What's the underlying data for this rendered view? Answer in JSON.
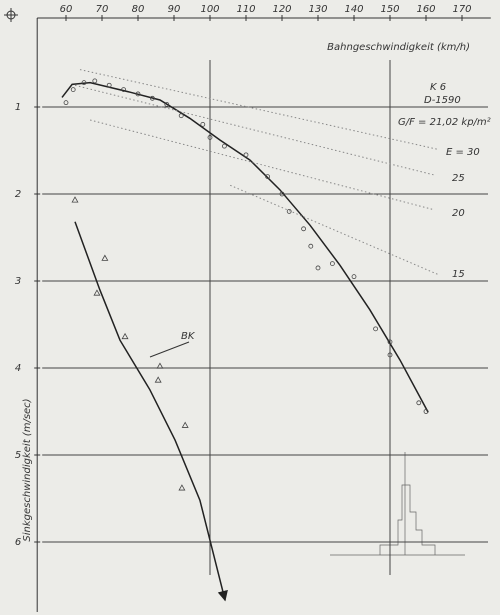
{
  "chart_data": {
    "type": "polar",
    "x_label": "Bahngeschwindigkeit (km/h)",
    "y_label": "Sinkgeschwindigkeit (m/sec)",
    "xlim": [
      52,
      178
    ],
    "xticks": [
      60,
      70,
      80,
      90,
      100,
      110,
      120,
      130,
      140,
      150,
      160,
      170
    ],
    "ylim": [
      0,
      6.8
    ],
    "yticks": [
      1,
      2,
      3,
      4,
      5,
      6
    ],
    "y_inverted": true,
    "grid": true,
    "xgrid": [
      100,
      150
    ],
    "annotations": [
      "K 6",
      "D-1590",
      "G/F = 21,02 kp/m²",
      "E = 30",
      "25",
      "20",
      "15",
      "BK"
    ],
    "series": [
      {
        "marker": "line",
        "color": "#222222",
        "x": [
          58.9,
          61.7,
          66.7,
          77.8,
          86.1,
          94.4,
          102.8,
          111.1,
          119.4,
          127.8,
          136.1,
          144.4,
          152.8,
          160.6
        ],
        "values": [
          0.89,
          0.74,
          0.72,
          0.83,
          0.92,
          1.13,
          1.38,
          1.61,
          1.95,
          2.36,
          2.82,
          3.33,
          3.91,
          4.51
        ]
      },
      {
        "marker": "circle",
        "color": "#444444",
        "x": [
          60,
          62,
          65,
          68,
          72,
          76,
          80,
          84,
          88,
          92,
          98,
          100,
          104,
          110,
          116,
          120,
          122,
          126,
          128,
          130,
          134,
          140,
          146,
          150,
          150,
          158,
          160
        ],
        "values": [
          0.95,
          0.8,
          0.72,
          0.7,
          0.75,
          0.8,
          0.85,
          0.9,
          0.97,
          1.1,
          1.2,
          1.35,
          1.45,
          1.55,
          1.8,
          2.0,
          2.2,
          2.4,
          2.6,
          2.85,
          2.8,
          2.95,
          3.55,
          3.7,
          3.85,
          4.4,
          4.5
        ]
      },
      {
        "marker": "arrow",
        "color": "#222222",
        "x": [
          62.5,
          69.4,
          75,
          83.3,
          90.3,
          97.2,
          104.2
        ],
        "values": [
          2.32,
          3.1,
          3.68,
          4.25,
          4.83,
          5.52,
          6.67
        ]
      },
      {
        "marker": "triangle",
        "color": "#444444",
        "x": [
          62.5,
          70.8,
          68.6,
          76.4,
          86.1,
          85.6,
          93.1,
          92.2
        ],
        "values": [
          2.07,
          2.74,
          3.14,
          3.64,
          3.98,
          4.14,
          4.66,
          5.38
        ]
      },
      {
        "marker": "dotted",
        "color": "#888888",
        "x": [
          63.9,
          163.6
        ],
        "values": [
          0.57,
          1.49
        ]
      },
      {
        "marker": "dotted",
        "color": "#888888",
        "x": [
          62.5,
          162.2
        ],
        "values": [
          0.75,
          1.78
        ]
      },
      {
        "marker": "dotted",
        "color": "#888888",
        "x": [
          66.7,
          162.2
        ],
        "values": [
          1.15,
          2.18
        ]
      },
      {
        "marker": "dotted",
        "color": "#888888",
        "x": [
          105.6,
          163.6
        ],
        "values": [
          1.9,
          2.93
        ]
      }
    ]
  }
}
